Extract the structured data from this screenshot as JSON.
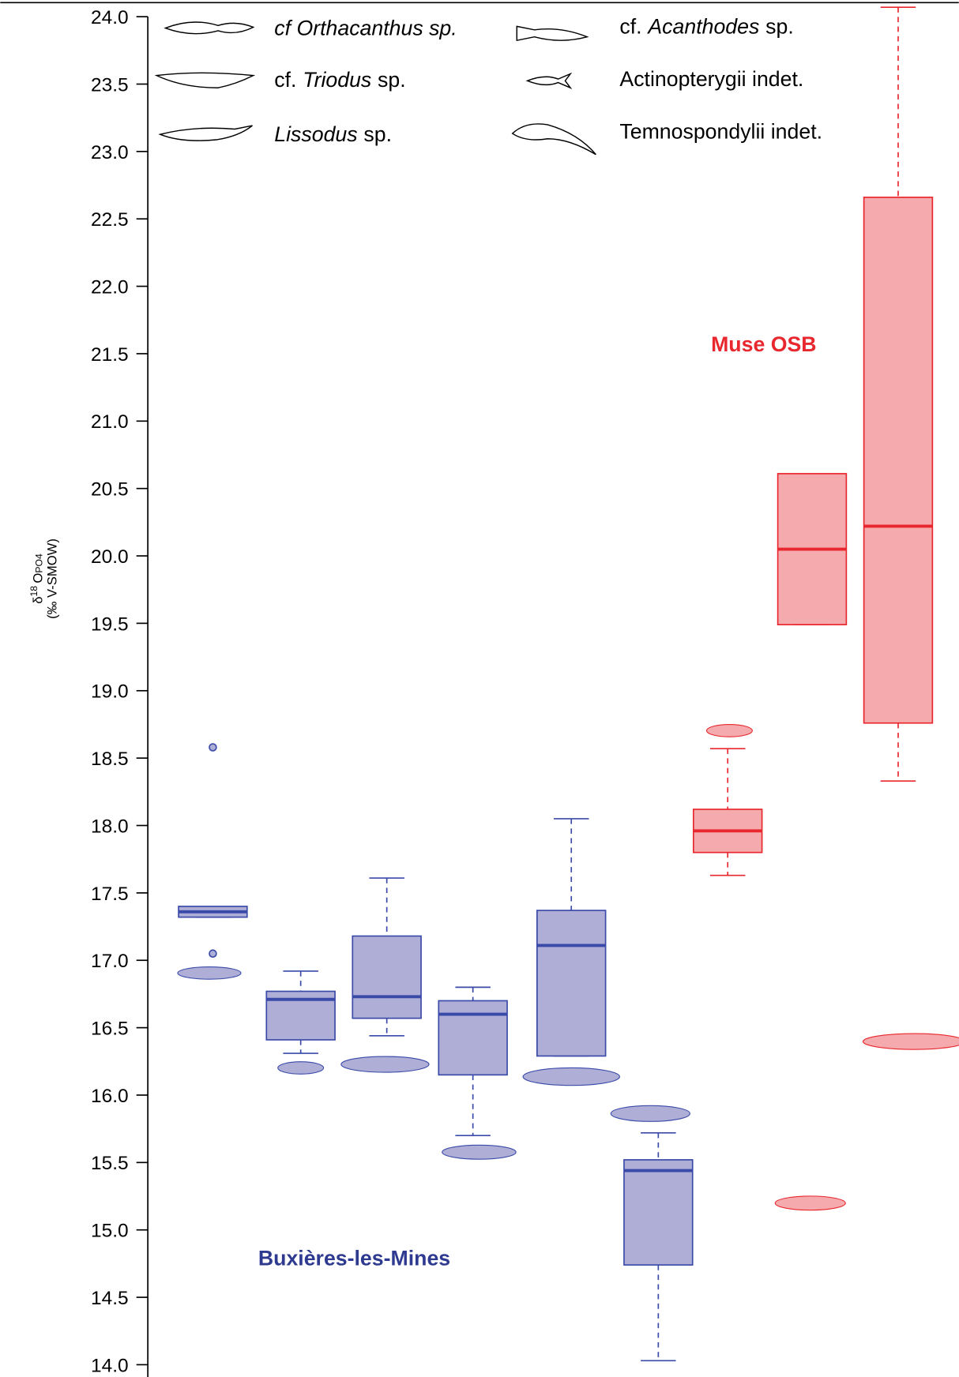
{
  "chart_data": {
    "type": "box",
    "y_label": {
      "symbol": "δ",
      "superscript": "18",
      "base": "O",
      "subscript": "PO4",
      "unit": "(‰ V-SMOW)"
    },
    "ylim": [
      14.0,
      24.0
    ],
    "yticks": [
      {
        "value": 14,
        "label": "14.0"
      },
      {
        "value": 14.5,
        "label": "14.5"
      },
      {
        "value": 15,
        "label": "15.0"
      },
      {
        "value": 15.5,
        "label": "15.5"
      },
      {
        "value": 16,
        "label": "16.0"
      },
      {
        "value": 16.5,
        "label": "16.5"
      },
      {
        "value": 17,
        "label": "17.0"
      },
      {
        "value": 17.5,
        "label": "17.5"
      },
      {
        "value": 18,
        "label": "18.0"
      },
      {
        "value": 18.5,
        "label": "18.5"
      },
      {
        "value": 19,
        "label": "19.0"
      },
      {
        "value": 19.5,
        "label": "19.5"
      },
      {
        "value": 20,
        "label": "20.0"
      },
      {
        "value": 20.5,
        "label": "20.5"
      },
      {
        "value": 21,
        "label": "21.0"
      },
      {
        "value": 21.5,
        "label": "21.5"
      },
      {
        "value": 22,
        "label": "22.0"
      },
      {
        "value": 22.5,
        "label": "22.5"
      },
      {
        "value": 23,
        "label": "23.0"
      },
      {
        "value": 23.5,
        "label": "23.5"
      },
      {
        "value": 24,
        "label": "24.0"
      }
    ],
    "categories": [
      null,
      null,
      null,
      null,
      null,
      null,
      null,
      null,
      null
    ],
    "boxes": [
      {
        "color": "#3a4aa8",
        "fill": "#aeaed6",
        "low": 17.32,
        "q1": 17.32,
        "median": 17.36,
        "q3": 17.4,
        "high": 17.4,
        "outliers": [
          18.58,
          17.05
        ]
      },
      {
        "color": "#3a4aa8",
        "fill": "#aeaed6",
        "low": 16.31,
        "q1": 16.41,
        "median": 16.71,
        "q3": 16.77,
        "high": 16.92,
        "outliers": []
      },
      {
        "color": "#3a4aa8",
        "fill": "#aeaed6",
        "low": 16.44,
        "q1": 16.57,
        "median": 16.73,
        "q3": 17.18,
        "high": 17.61,
        "outliers": []
      },
      {
        "color": "#3a4aa8",
        "fill": "#aeaed6",
        "low": 15.7,
        "q1": 16.15,
        "median": 16.6,
        "q3": 16.7,
        "high": 16.8,
        "outliers": []
      },
      {
        "color": "#3a4aa8",
        "fill": "#aeaed6",
        "low": 16.29,
        "q1": 16.29,
        "median": 17.11,
        "q3": 17.37,
        "high": 18.05,
        "outliers": []
      },
      {
        "color": "#3a4aa8",
        "fill": "#aeaed6",
        "low": 14.03,
        "q1": 14.74,
        "median": 15.44,
        "q3": 15.52,
        "high": 15.72,
        "outliers": []
      },
      {
        "color": "#e8272e",
        "fill": "#f5abad",
        "low": 17.63,
        "q1": 17.8,
        "median": 17.96,
        "q3": 18.12,
        "high": 18.57,
        "outliers": []
      },
      {
        "color": "#e8272e",
        "fill": "#f5abad",
        "low": 19.49,
        "q1": 19.49,
        "median": 20.05,
        "q3": 20.61,
        "high": 20.61,
        "outliers": []
      },
      {
        "color": "#e8272e",
        "fill": "#f5abad",
        "low": 18.33,
        "q1": 18.76,
        "median": 20.22,
        "q3": 22.66,
        "high": 24.07,
        "outliers": []
      }
    ],
    "annotations": [
      {
        "text": "Muse OSB",
        "color": "#e8272e"
      },
      {
        "text": "Buxières-les-Mines",
        "color": "#2e3a8f"
      }
    ],
    "legend": [
      {
        "parts": [
          {
            "text": "cf Orthacanthus sp.",
            "italic": true
          }
        ]
      },
      {
        "parts": [
          {
            "text": "cf.",
            "italic": false
          },
          {
            "text": "Triodus",
            "italic": true
          },
          {
            "text": "sp.",
            "italic": false
          }
        ]
      },
      {
        "parts": [
          {
            "text": "Lissodus",
            "italic": true
          },
          {
            "text": "sp.",
            "italic": false
          }
        ]
      },
      {
        "parts": [
          {
            "text": "cf.",
            "italic": false
          },
          {
            "text": "Acanthodes",
            "italic": true
          },
          {
            "text": "sp.",
            "italic": false
          }
        ]
      },
      {
        "parts": [
          {
            "text": "Actinopterygii indet.",
            "italic": false
          }
        ]
      },
      {
        "parts": [
          {
            "text": "Temnospondylii indet.",
            "italic": false
          }
        ]
      }
    ]
  }
}
